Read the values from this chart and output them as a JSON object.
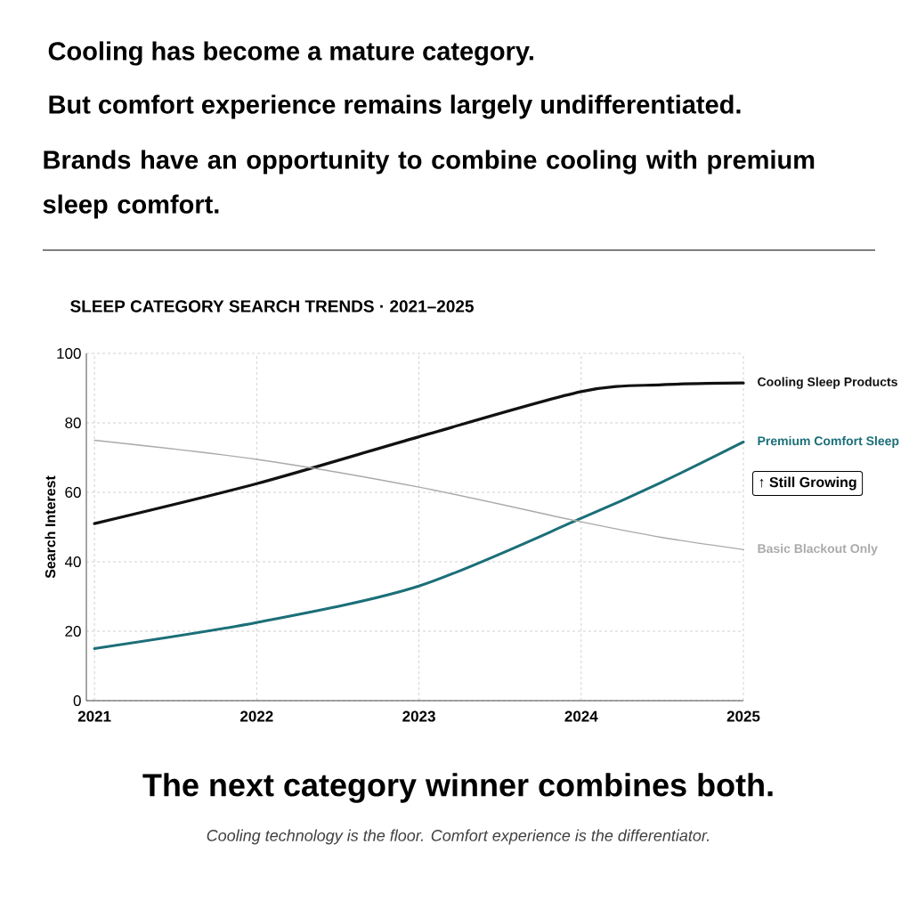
{
  "chart_data": {
    "type": "line",
    "title": "SLEEP CATEGORY SEARCH TRENDS · 2021–2025",
    "ylabel": "Search Interest",
    "annotations": [
      "Cooling has become a mature category.",
      "But comfort experience remains largely undifferentiated.",
      "Brands have an opportunity to combine cooling with premium sleep comfort.",
      "↑ Still Growing",
      "The next category winner combines both.",
      "Cooling technology is the floor. Comfort experience is the differentiator."
    ],
    "x": [
      2021,
      2022,
      2023,
      2024,
      2024.5,
      2025
    ],
    "series": [
      {
        "name": "Cooling Sleep Products",
        "color": "#111111",
        "values": [
          51,
          62.5,
          76,
          89,
          91,
          91.5
        ]
      },
      {
        "name": "Premium Comfort Sleep",
        "color": "#1b6f78",
        "values": [
          15,
          22.5,
          33,
          52.5,
          63,
          74.5
        ]
      },
      {
        "name": "Basic Blackout Only",
        "color": "#aaaaaa",
        "values": [
          75,
          69.5,
          61.5,
          51.5,
          47,
          43.5
        ]
      }
    ],
    "xlim": [
      2020.95,
      2025
    ],
    "xticks": [
      2021,
      2022,
      2023,
      2024,
      2025
    ],
    "ylim": [
      0,
      100
    ],
    "yticks": [
      0,
      20,
      40,
      60,
      80,
      100
    ],
    "grid": true
  }
}
